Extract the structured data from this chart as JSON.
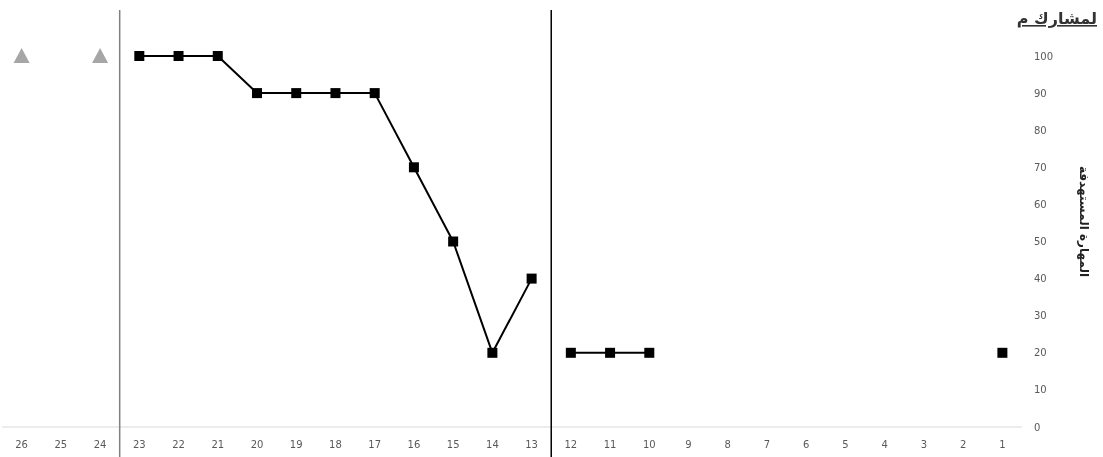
{
  "chart_data": {
    "type": "line",
    "title": "لمشارك م",
    "ylabel": "المهارة المستهدفة",
    "x": [
      1,
      2,
      3,
      4,
      5,
      6,
      7,
      8,
      9,
      10,
      11,
      12,
      13,
      14,
      15,
      16,
      17,
      18,
      19,
      20,
      21,
      22,
      23,
      24,
      25,
      26
    ],
    "xlim": [
      26.5,
      0.5
    ],
    "xticks": [
      1,
      2,
      3,
      4,
      5,
      6,
      7,
      8,
      9,
      10,
      11,
      12,
      13,
      14,
      15,
      16,
      17,
      18,
      19,
      20,
      21,
      22,
      23,
      24,
      25,
      26
    ],
    "ylim": [
      0,
      100
    ],
    "yticks": [
      0,
      10,
      20,
      30,
      40,
      50,
      60,
      70,
      80,
      90,
      100
    ],
    "series": [
      {
        "color": "#000000",
        "marker": "square",
        "values": [
          20,
          null,
          null,
          null,
          null,
          null,
          null,
          null,
          null,
          20,
          20,
          20,
          null,
          null,
          null,
          null,
          null,
          null,
          null,
          null,
          null,
          null,
          null,
          null,
          null,
          null
        ]
      },
      {
        "color": "#000000",
        "marker": "square",
        "values": [
          null,
          null,
          null,
          null,
          null,
          null,
          null,
          null,
          null,
          null,
          null,
          null,
          40,
          20,
          50,
          70,
          90,
          90,
          90,
          90,
          100,
          100,
          100,
          null,
          null,
          null
        ]
      },
      {
        "type": "scatter",
        "color": "#a6a6a6",
        "marker": "triangle",
        "values": [
          null,
          null,
          null,
          null,
          null,
          null,
          null,
          null,
          null,
          null,
          null,
          null,
          null,
          null,
          null,
          null,
          null,
          null,
          null,
          null,
          null,
          null,
          null,
          100,
          null,
          100
        ]
      }
    ],
    "ref_lines": [
      {
        "axis": "x",
        "value": 23.5,
        "color": "#808080"
      },
      {
        "axis": "x",
        "value": 12.5,
        "color": "#000000"
      }
    ]
  }
}
